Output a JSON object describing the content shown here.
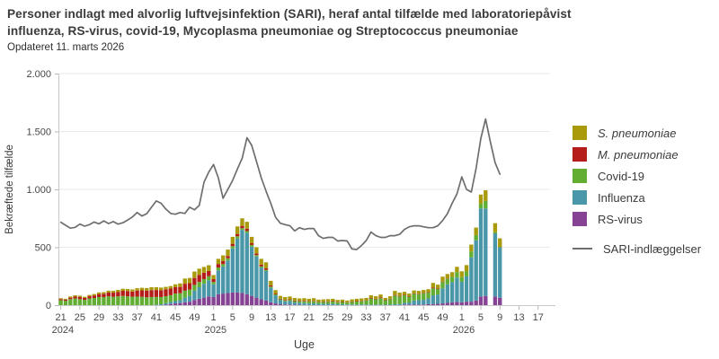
{
  "header": {
    "title_lines": [
      "Personer indlagt med alvorlig luftvejsinfektion (SARI), heraf antal tilfælde med laboratoriepåvist",
      "influenza, RS-virus, covid-19, Mycoplasma pneumoniae og Streptococcus pneumoniae"
    ],
    "subtitle": "Opdateret 11. marts 2026"
  },
  "legend": {
    "items": [
      {
        "label": "S. pneumoniae",
        "color": "#a89a0b",
        "italic": true
      },
      {
        "label": "M. pneumoniae",
        "color": "#b51d1b",
        "italic": true
      },
      {
        "label": "Covid-19",
        "color": "#61ae32",
        "italic": false
      },
      {
        "label": "Influenza",
        "color": "#4a97a9",
        "italic": false
      },
      {
        "label": "RS-virus",
        "color": "#864293",
        "italic": false
      }
    ],
    "line_item": {
      "label": "SARI-indlæggelser",
      "color": "#6e6e6e"
    }
  },
  "chart_data": {
    "type": "bar",
    "stacked": true,
    "ylabel": "Bekræftede tilfælde",
    "xlabel": "Uge",
    "ylim": [
      0,
      2000
    ],
    "grid": true,
    "legend_position": "right",
    "yticks": [
      {
        "value": 0,
        "label": "0"
      },
      {
        "value": 500,
        "label": "500"
      },
      {
        "value": 1000,
        "label": "1.000"
      },
      {
        "value": 1500,
        "label": "1.500"
      },
      {
        "value": 2000,
        "label": "2.000"
      }
    ],
    "x_slot_count": 103,
    "xtick_step": 4,
    "xtick_labels": [
      "21",
      "25",
      "29",
      "33",
      "37",
      "41",
      "45",
      "49",
      "1",
      "5",
      "9",
      "13",
      "17",
      "21",
      "25",
      "29",
      "33",
      "37",
      "41",
      "45",
      "49",
      "1",
      "5",
      "9",
      "13",
      "17"
    ],
    "year_labels": [
      {
        "slot": 0,
        "label": "2024"
      },
      {
        "slot": 32,
        "label": "2025"
      },
      {
        "slot": 84,
        "label": "2026"
      }
    ],
    "first_slot": {
      "year": 2024,
      "week": 21
    },
    "series_stack_order": [
      "RS-virus",
      "Influenza",
      "Covid-19",
      "M. pneumoniae",
      "S. pneumoniae"
    ],
    "series": [
      {
        "name": "RS-virus",
        "color": "#864293",
        "values": [
          0,
          0,
          0,
          0,
          0,
          0,
          0,
          0,
          0,
          0,
          0,
          0,
          0,
          0,
          0,
          0,
          0,
          0,
          0,
          0,
          0,
          0,
          5,
          10,
          15,
          18,
          25,
          30,
          45,
          55,
          65,
          75,
          70,
          95,
          100,
          105,
          110,
          110,
          105,
          95,
          80,
          65,
          50,
          40,
          25,
          15,
          8,
          5,
          5,
          3,
          3,
          2,
          0,
          0,
          0,
          0,
          0,
          0,
          0,
          0,
          0,
          0,
          0,
          0,
          0,
          0,
          0,
          0,
          0,
          0,
          0,
          0,
          5,
          5,
          5,
          5,
          5,
          8,
          10,
          12,
          15,
          20,
          25,
          28,
          25,
          30,
          30,
          40,
          75,
          80,
          0,
          75,
          64
        ]
      },
      {
        "name": "Influenza",
        "color": "#4a97a9",
        "values": [
          0,
          0,
          0,
          0,
          0,
          0,
          0,
          0,
          0,
          0,
          0,
          0,
          0,
          0,
          0,
          0,
          0,
          0,
          0,
          0,
          5,
          8,
          12,
          18,
          20,
          25,
          40,
          50,
          80,
          100,
          120,
          140,
          110,
          205,
          235,
          280,
          380,
          465,
          545,
          530,
          425,
          355,
          275,
          255,
          125,
          70,
          35,
          28,
          30,
          20,
          18,
          16,
          14,
          15,
          12,
          12,
          12,
          12,
          8,
          8,
          6,
          6,
          6,
          6,
          5,
          5,
          5,
          5,
          4,
          4,
          8,
          10,
          15,
          18,
          35,
          38,
          42,
          50,
          75,
          80,
          130,
          160,
          175,
          210,
          177,
          219,
          383,
          520,
          760,
          755,
          0,
          545,
          436
        ]
      },
      {
        "name": "Covid-19",
        "color": "#61ae32",
        "values": [
          42,
          38,
          52,
          58,
          52,
          46,
          58,
          62,
          70,
          70,
          76,
          72,
          76,
          80,
          76,
          72,
          74,
          72,
          68,
          70,
          66,
          62,
          60,
          58,
          65,
          60,
          60,
          55,
          50,
          45,
          40,
          35,
          20,
          25,
          20,
          20,
          20,
          20,
          15,
          15,
          15,
          12,
          10,
          10,
          10,
          8,
          8,
          8,
          10,
          12,
          12,
          14,
          16,
          18,
          15,
          16,
          17,
          19,
          17,
          19,
          16,
          22,
          25,
          27,
          35,
          52,
          46,
          55,
          38,
          48,
          75,
          65,
          65,
          50,
          58,
          52,
          55,
          50,
          60,
          50,
          55,
          48,
          45,
          48,
          40,
          42,
          50,
          45,
          40,
          65,
          0,
          10,
          0
        ]
      },
      {
        "name": "M. pneumoniae",
        "color": "#b51d1b",
        "values": [
          10,
          10,
          13,
          16,
          19,
          16,
          19,
          22,
          26,
          28,
          33,
          36,
          39,
          44,
          46,
          46,
          52,
          56,
          58,
          60,
          60,
          60,
          60,
          58,
          55,
          55,
          60,
          55,
          60,
          60,
          55,
          45,
          25,
          30,
          25,
          20,
          20,
          20,
          20,
          20,
          15,
          15,
          15,
          15,
          10,
          7,
          5,
          5,
          5,
          5,
          5,
          5,
          4,
          4,
          3,
          4,
          4,
          4,
          4,
          4,
          3,
          4,
          4,
          4,
          4,
          5,
          4,
          7,
          4,
          4,
          5,
          5,
          5,
          5,
          4,
          4,
          4,
          4,
          7,
          5,
          4,
          3,
          0,
          0,
          0,
          0,
          0,
          0,
          0,
          0,
          0,
          0,
          0
        ]
      },
      {
        "name": "S. pneumoniae",
        "color": "#a89a0b",
        "values": [
          8,
          7,
          10,
          11,
          11,
          10,
          11,
          12,
          14,
          14,
          16,
          16,
          17,
          18,
          18,
          18,
          20,
          22,
          22,
          25,
          24,
          22,
          21,
          21,
          25,
          30,
          45,
          45,
          55,
          55,
          50,
          50,
          35,
          45,
          50,
          55,
          60,
          65,
          65,
          60,
          55,
          53,
          50,
          50,
          40,
          30,
          24,
          24,
          25,
          22,
          20,
          23,
          21,
          23,
          18,
          18,
          19,
          20,
          16,
          17,
          15,
          18,
          20,
          21,
          18,
          23,
          22,
          25,
          16,
          21,
          35,
          28,
          25,
          22,
          25,
          24,
          25,
          26,
          40,
          30,
          42,
          38,
          40,
          45,
          50,
          55,
          60,
          65,
          80,
          92,
          0,
          78,
          77
        ]
      }
    ],
    "line_series": {
      "name": "SARI-indlæggelser",
      "color": "#6e6e6e",
      "values": [
        716,
        690,
        665,
        672,
        700,
        682,
        695,
        718,
        702,
        728,
        705,
        722,
        700,
        712,
        735,
        762,
        800,
        770,
        790,
        846,
        900,
        880,
        830,
        792,
        785,
        800,
        792,
        846,
        823,
        861,
        1062,
        1150,
        1215,
        1100,
        923,
        1000,
        1077,
        1177,
        1270,
        1446,
        1380,
        1240,
        1100,
        985,
        880,
        760,
        708,
        695,
        685,
        641,
        669,
        654,
        662,
        662,
        600,
        577,
        585,
        585,
        554,
        558,
        554,
        485,
        481,
        515,
        558,
        631,
        600,
        585,
        585,
        600,
        600,
        612,
        654,
        677,
        685,
        685,
        677,
        669,
        669,
        685,
        731,
        790,
        880,
        960,
        1108,
        1000,
        977,
        1180,
        1440,
        1608,
        1410,
        1230,
        1131
      ]
    }
  }
}
